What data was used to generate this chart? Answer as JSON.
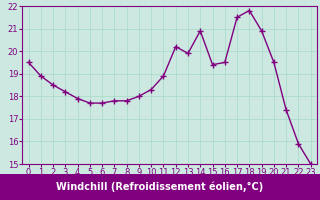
{
  "x": [
    0,
    1,
    2,
    3,
    4,
    5,
    6,
    7,
    8,
    9,
    10,
    11,
    12,
    13,
    14,
    15,
    16,
    17,
    18,
    19,
    20,
    21,
    22,
    23
  ],
  "y": [
    19.5,
    18.9,
    18.5,
    18.2,
    17.9,
    17.7,
    17.7,
    17.8,
    17.8,
    18.0,
    18.3,
    18.9,
    20.2,
    19.9,
    20.9,
    19.4,
    19.5,
    21.5,
    21.8,
    20.9,
    19.5,
    17.4,
    15.9,
    15.0
  ],
  "line_color": "#800080",
  "marker": "+",
  "markersize": 4,
  "linewidth": 1.0,
  "markeredgewidth": 1.0,
  "xlabel": "Windchill (Refroidissement éolien,°C)",
  "xlabel_fontsize": 7,
  "xlim_min": -0.5,
  "xlim_max": 23.5,
  "ylim_min": 15,
  "ylim_max": 22,
  "yticks": [
    15,
    16,
    17,
    18,
    19,
    20,
    21,
    22
  ],
  "xticks": [
    0,
    1,
    2,
    3,
    4,
    5,
    6,
    7,
    8,
    9,
    10,
    11,
    12,
    13,
    14,
    15,
    16,
    17,
    18,
    19,
    20,
    21,
    22,
    23
  ],
  "grid_color": "#aaddcc",
  "background_color": "#cce8e0",
  "tick_fontsize": 6,
  "xlabel_bg": "#800080",
  "xlabel_text_color": "#ffffff",
  "spine_color": "#800080"
}
